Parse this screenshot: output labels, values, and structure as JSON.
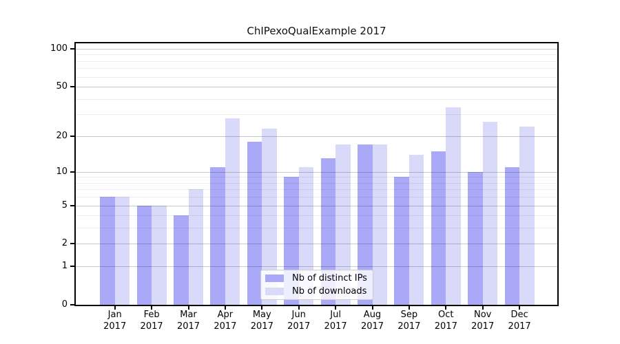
{
  "chart_data": {
    "type": "bar",
    "title": "ChIPexoQualExample 2017",
    "categories": [
      "Jan 2017",
      "Feb 2017",
      "Mar 2017",
      "Apr 2017",
      "May 2017",
      "Jun 2017",
      "Jul 2017",
      "Aug 2017",
      "Sep 2017",
      "Oct 2017",
      "Nov 2017",
      "Dec 2017"
    ],
    "x_tick_months": [
      "Jan",
      "Feb",
      "Mar",
      "Apr",
      "May",
      "Jun",
      "Jul",
      "Aug",
      "Sep",
      "Oct",
      "Nov",
      "Dec"
    ],
    "x_tick_year": "2017",
    "series": [
      {
        "name": "Nb of distinct IPs",
        "color": "#a9a9f8",
        "values": [
          6,
          5,
          4,
          11,
          18,
          9,
          13,
          17,
          9,
          15,
          10,
          11
        ]
      },
      {
        "name": "Nb of downloads",
        "color": "#d9d9fa",
        "values": [
          6,
          5,
          7,
          28,
          23,
          11,
          17,
          17,
          14,
          34,
          26,
          24
        ]
      }
    ],
    "yscale": "log1p",
    "ylim": [
      0,
      110
    ],
    "y_tick_values": [
      0,
      1,
      2,
      5,
      10,
      20,
      50,
      100
    ],
    "y_tick_labels": [
      "0",
      "1",
      "2",
      "5",
      "10",
      "20",
      "50",
      "100"
    ],
    "y_minor_grid_values": [
      3,
      4,
      6,
      7,
      8,
      9,
      30,
      40,
      60,
      70,
      80,
      90
    ],
    "grid": true,
    "legend_position": "lower center inside",
    "colors": {
      "axis": "#000000",
      "grid_major": "rgba(0,0,0,0.21)",
      "grid_minor": "rgba(0,0,0,0.07)",
      "legend_border": "#cccccc",
      "plot_background": "#ffffff"
    }
  }
}
